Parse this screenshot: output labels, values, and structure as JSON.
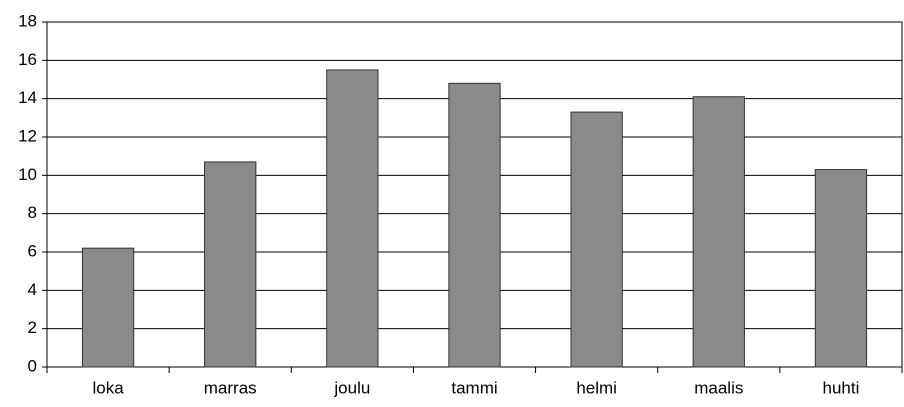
{
  "chart_data": {
    "type": "bar",
    "categories": [
      "loka",
      "marras",
      "joulu",
      "tammi",
      "helmi",
      "maalis",
      "huhti"
    ],
    "values": [
      6.2,
      10.7,
      15.5,
      14.8,
      13.3,
      14.1,
      10.3
    ],
    "color": "#8a8a8a",
    "ylim": [
      0,
      18
    ],
    "yticks": [
      0,
      2,
      4,
      6,
      8,
      10,
      12,
      14,
      16,
      18
    ],
    "grid": true
  }
}
